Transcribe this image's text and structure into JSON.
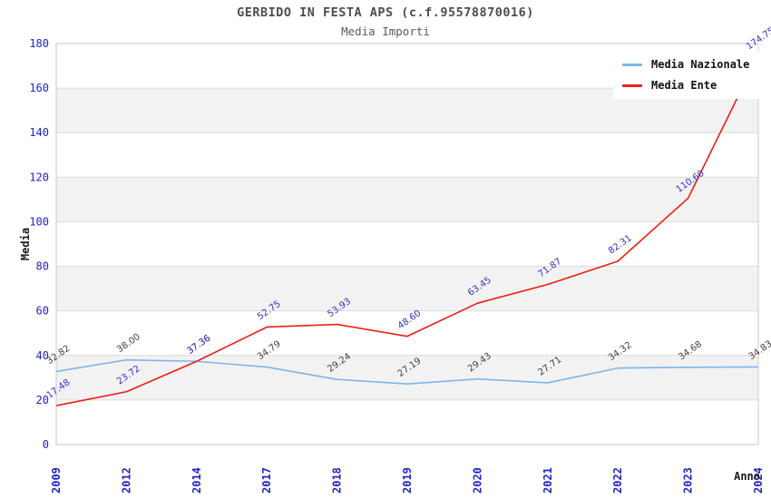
{
  "chart_data": {
    "type": "line",
    "title": "GERBIDO IN FESTA APS (c.f.95578870016)",
    "subtitle": "Media Importi",
    "xlabel": "Anno",
    "ylabel": "Media",
    "categories": [
      "2009",
      "2012",
      "2014",
      "2017",
      "2018",
      "2019",
      "2020",
      "2021",
      "2022",
      "2023",
      "2024"
    ],
    "series": [
      {
        "name": "Media Nazionale",
        "color": "#7cb5ec",
        "label_color": "#404040",
        "values": [
          32.82,
          38.0,
          37.36,
          34.79,
          29.24,
          27.19,
          29.43,
          27.71,
          34.32,
          34.68,
          34.83
        ]
      },
      {
        "name": "Media Ente",
        "color": "#ed1e17",
        "label_color": "#3232c8",
        "values": [
          17.48,
          23.72,
          37.36,
          52.75,
          53.93,
          48.6,
          63.45,
          71.87,
          82.31,
          110.6,
          174.75
        ]
      }
    ],
    "ylim": [
      0,
      180
    ],
    "ytick_step": 20,
    "grid": "horizontal",
    "legend_position": "top-right",
    "band_colors": [
      "#ffffff",
      "#f2f2f2"
    ],
    "gridline_color": "#dcdcdc",
    "border_color": "#c9c9c9",
    "tick_label_color": "#2222cc",
    "label_decimals": 2
  }
}
